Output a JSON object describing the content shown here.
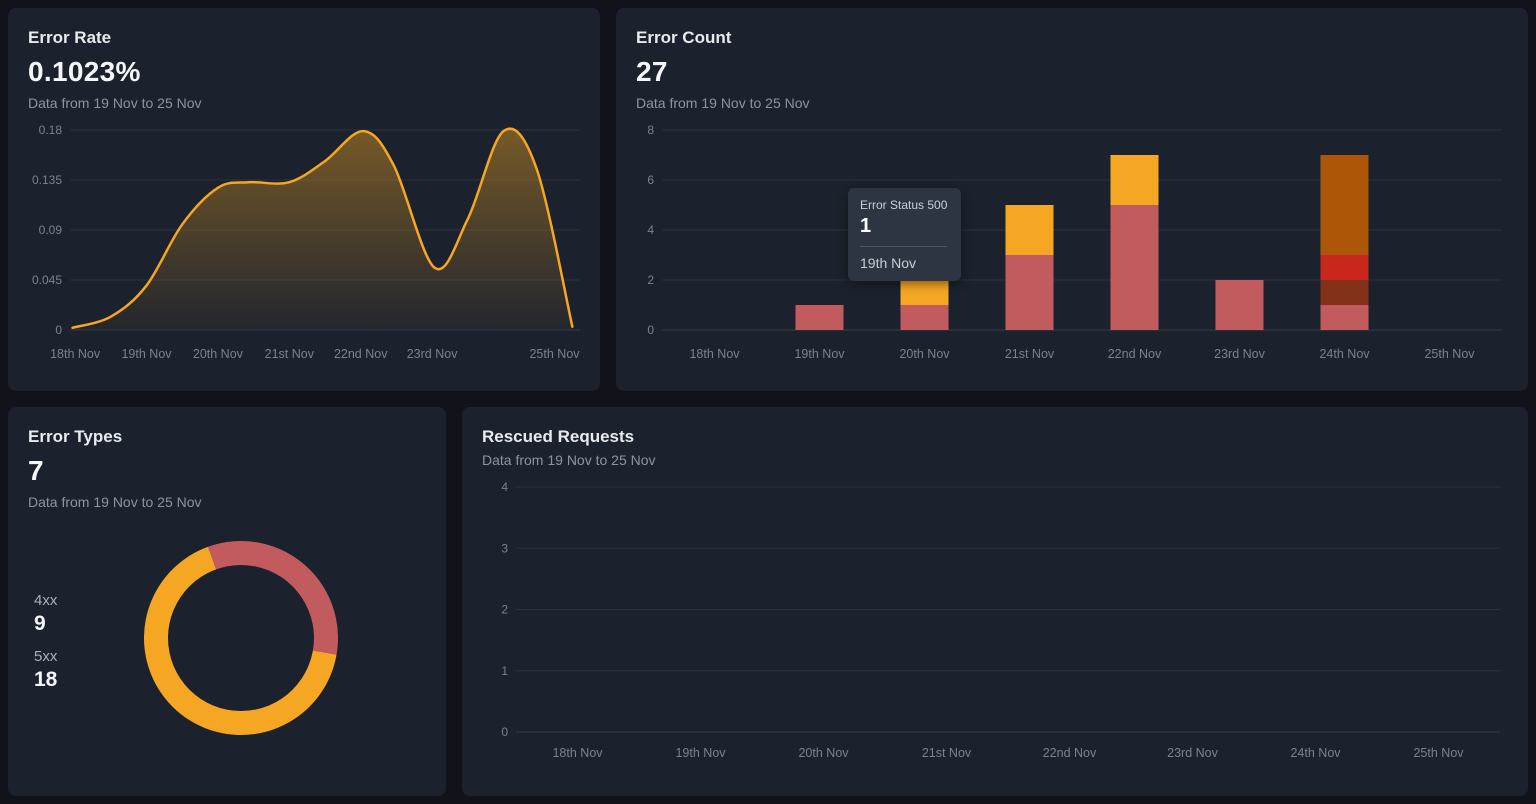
{
  "panels": {
    "error_rate": {
      "title": "Error Rate",
      "value": "0.1023%",
      "subtitle": "Data from 19 Nov to 25 Nov"
    },
    "error_count": {
      "title": "Error Count",
      "value": "27",
      "subtitle": "Data from 19 Nov to 25 Nov",
      "tooltip": {
        "title": "Error Status 500",
        "value": "1",
        "label": "19th Nov"
      }
    },
    "error_types": {
      "title": "Error Types",
      "value": "7",
      "subtitle": "Data from 19 Nov to 25 Nov",
      "legend": [
        {
          "label": "4xx",
          "value": "9"
        },
        {
          "label": "5xx",
          "value": "18"
        }
      ]
    },
    "rescued": {
      "title": "Rescued Requests",
      "subtitle": "Data from 19 Nov to 25 Nov"
    }
  },
  "colors": {
    "orange": "#f5a623",
    "red": "#c25b5e",
    "dark_orange": "#ad5508",
    "bright_red": "#c9271c",
    "maroon": "#833018",
    "panel_bg": "#1c222d",
    "page_bg": "#10141a",
    "grid": "#3a414d",
    "tick_text": "#7a8290"
  },
  "chart_data": [
    {
      "id": "error_rate",
      "type": "area",
      "title": "Error Rate",
      "ylim": [
        0,
        0.18
      ],
      "y_ticks": [
        "0.18",
        "0.135",
        "0.09",
        "0.045",
        "0"
      ],
      "x_ticks": [
        {
          "label": "18th Nov",
          "pos": 0.01
        },
        {
          "label": "19th Nov",
          "pos": 0.15
        },
        {
          "label": "20th Nov",
          "pos": 0.29
        },
        {
          "label": "21st Nov",
          "pos": 0.43
        },
        {
          "label": "22nd Nov",
          "pos": 0.57
        },
        {
          "label": "23rd Nov",
          "pos": 0.71
        },
        {
          "label": "25th Nov",
          "pos": 0.95
        }
      ],
      "points": [
        [
          0.005,
          0.002
        ],
        [
          0.08,
          0.012
        ],
        [
          0.15,
          0.04
        ],
        [
          0.22,
          0.095
        ],
        [
          0.29,
          0.128
        ],
        [
          0.35,
          0.133
        ],
        [
          0.43,
          0.133
        ],
        [
          0.5,
          0.152
        ],
        [
          0.575,
          0.179
        ],
        [
          0.635,
          0.148
        ],
        [
          0.715,
          0.056
        ],
        [
          0.78,
          0.1
        ],
        [
          0.85,
          0.179
        ],
        [
          0.915,
          0.145
        ],
        [
          0.985,
          0.003
        ]
      ],
      "line_color": "#f5a623",
      "fill_from": "rgba(245,166,35,0.42)",
      "fill_to": "rgba(245,166,35,0.03)"
    },
    {
      "id": "error_count",
      "type": "bar",
      "stacked": true,
      "title": "Error Count",
      "ylim": [
        0,
        8
      ],
      "y_ticks": [
        8,
        6,
        4,
        2,
        0
      ],
      "categories": [
        "18th Nov",
        "19th Nov",
        "20th Nov",
        "21st Nov",
        "22nd Nov",
        "23rd Nov",
        "24th Nov",
        "25th Nov"
      ],
      "bars": [
        [],
        [
          {
            "value": 1,
            "color": "#c25b5e"
          }
        ],
        [
          {
            "value": 1,
            "color": "#c25b5e"
          },
          {
            "value": 1,
            "color": "#f5a623"
          }
        ],
        [
          {
            "value": 3,
            "color": "#c25b5e"
          },
          {
            "value": 2,
            "color": "#f5a623"
          }
        ],
        [
          {
            "value": 5,
            "color": "#c25b5e"
          },
          {
            "value": 2,
            "color": "#f5a623"
          }
        ],
        [
          {
            "value": 2,
            "color": "#c25b5e"
          }
        ],
        [
          {
            "value": 1,
            "color": "#c25b5e"
          },
          {
            "value": 1,
            "color": "#833018"
          },
          {
            "value": 1,
            "color": "#c9271c"
          },
          {
            "value": 4,
            "color": "#ad5508"
          }
        ],
        []
      ]
    },
    {
      "id": "error_types",
      "type": "pie",
      "donut": true,
      "title": "Error Types",
      "total": 27,
      "start_angle": -20,
      "slices": [
        {
          "label": "4xx",
          "value": 9,
          "color": "#c25b5e"
        },
        {
          "label": "5xx",
          "value": 18,
          "color": "#f5a623"
        }
      ]
    },
    {
      "id": "rescued",
      "type": "line",
      "title": "Rescued Requests",
      "ylim": [
        0,
        4
      ],
      "y_ticks": [
        4,
        3,
        2,
        1,
        0
      ],
      "categories": [
        "18th Nov",
        "19th Nov",
        "20th Nov",
        "21st Nov",
        "22nd Nov",
        "23rd Nov",
        "24th Nov",
        "25th Nov"
      ],
      "series": []
    }
  ]
}
